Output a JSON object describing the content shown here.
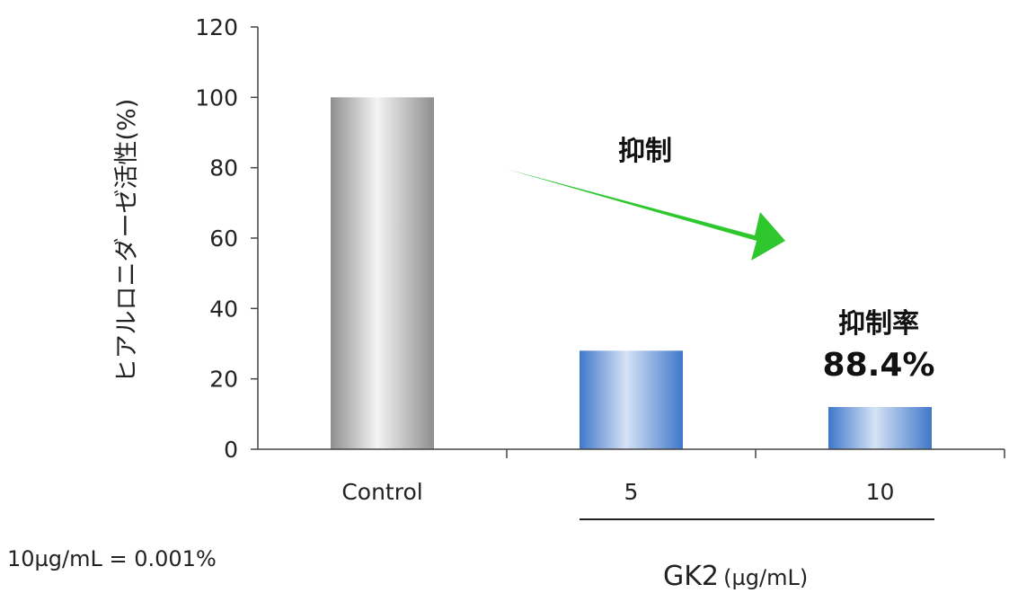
{
  "chart_data": {
    "type": "bar",
    "categories": [
      "Control",
      "5",
      "10"
    ],
    "values": [
      100,
      28,
      12
    ],
    "ylabel": "ヒアルロニダーゼ活性(%)",
    "ylim": [
      0,
      120
    ],
    "yticks": [
      "0",
      "20",
      "40",
      "60",
      "80",
      "100",
      "120"
    ],
    "grid": false,
    "bar_colors": [
      "#9a9a9a",
      "#3f78c9",
      "#3f78c9"
    ],
    "annotations": {
      "arrow_label": "抑制",
      "arrow_color": "#2ec82e",
      "rate_label": "抑制率",
      "rate_value": "88.4%"
    }
  },
  "footnote": "10µg/mL = 0.001%",
  "group_label": {
    "name": "GK2",
    "unit": "(µg/mL)"
  }
}
